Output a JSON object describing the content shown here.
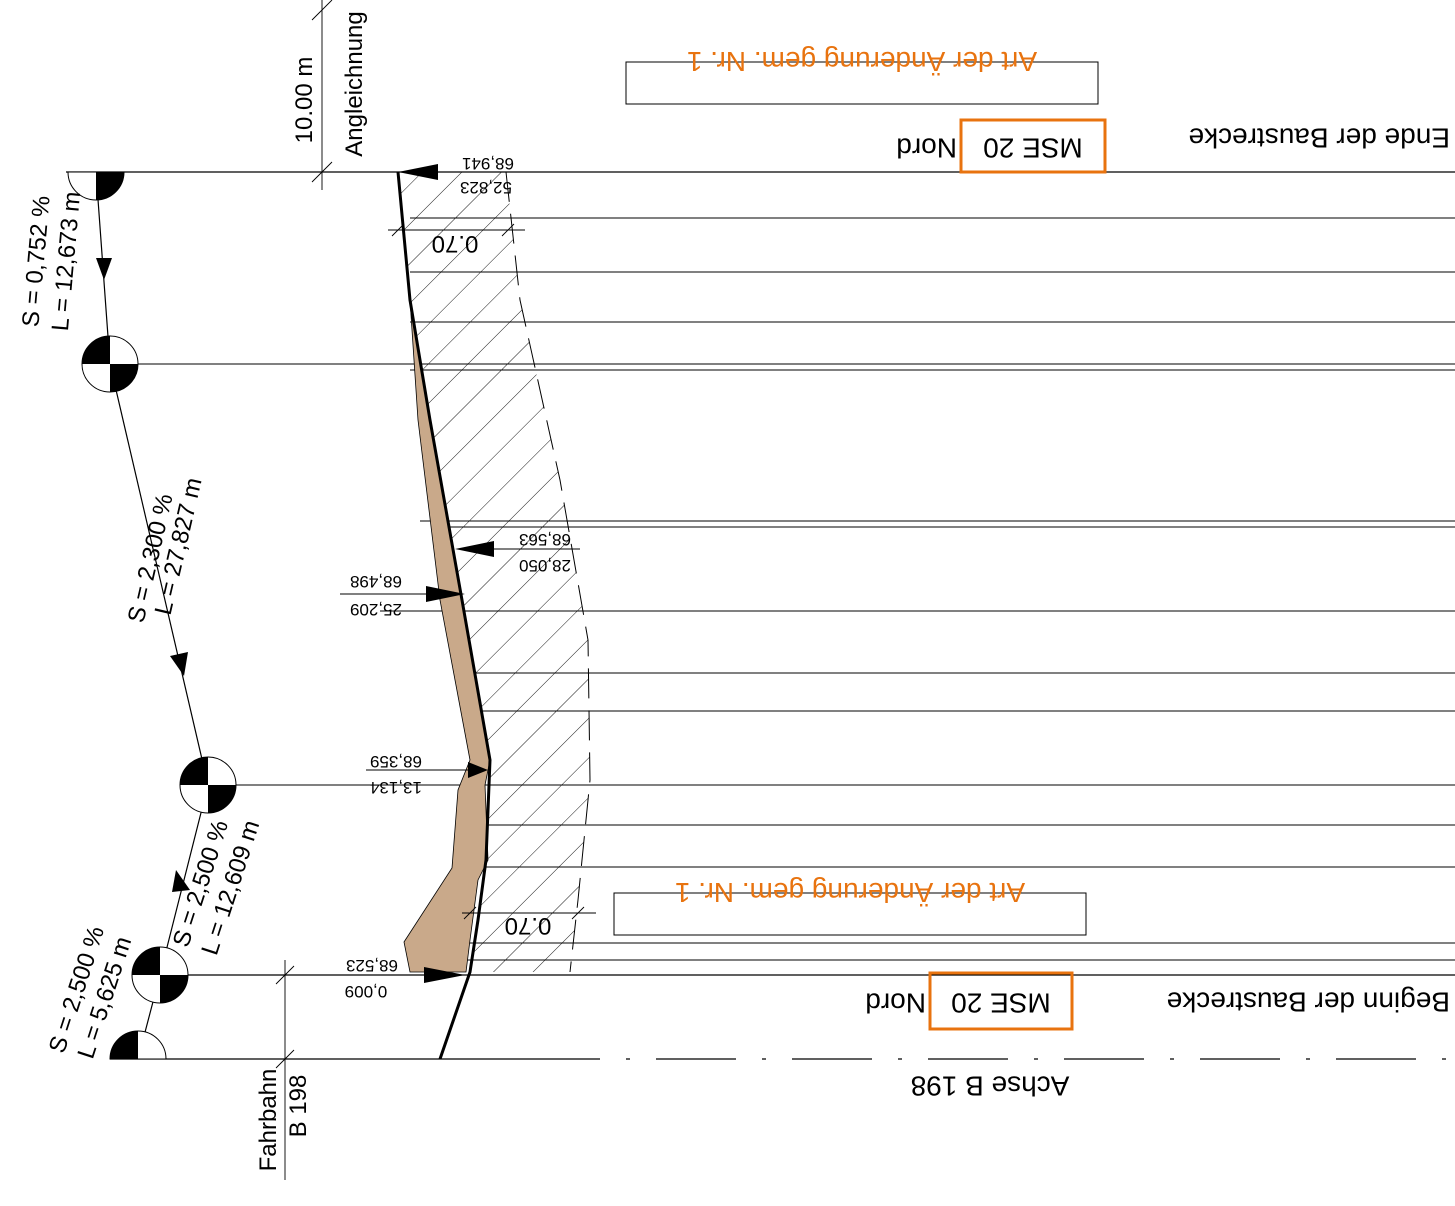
{
  "colors": {
    "accent": "#e8730f",
    "fill": "#c9a98a",
    "line": "#000000"
  },
  "labels": {
    "end_prefix": "Ende der Baustrecke",
    "begin_prefix": "Beginn der Baustrecke",
    "mse": "MSE 20",
    "nord": "Nord",
    "change_note_top": "Art der Änderung gem. Nr. 1",
    "change_note_bottom": "Art der Änderung gem. Nr. 1",
    "axis": "Achse B 198",
    "fahrbahn_1": "Fahrbahn",
    "fahrbahn_2": "B 198",
    "angleichung": "Angleichnung",
    "dim_10m": "10.00 m",
    "dim_070_top": "0.70",
    "dim_070_bottom": "0.70"
  },
  "points": [
    {
      "station": "52,823",
      "height": "68,941"
    },
    {
      "station": "28,050",
      "height": "68,563"
    },
    {
      "station": "25,209",
      "height": "68,498"
    },
    {
      "station": "13,134",
      "height": "68,359"
    },
    {
      "station": "0,009",
      "height": "68,523"
    }
  ],
  "slopes": [
    {
      "s": "S = 0,752 %",
      "l": "L = 12,673 m"
    },
    {
      "s": "S = 2,300 %",
      "l": "L = 27,827 m"
    },
    {
      "s": "S = 2,500 %",
      "l": "L = 12,609 m"
    },
    {
      "s": "S = 2,500 %",
      "l": "L = 5,625 m"
    }
  ]
}
